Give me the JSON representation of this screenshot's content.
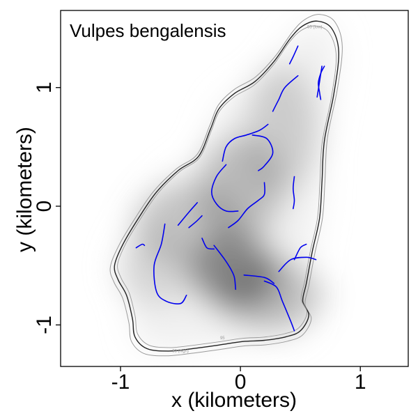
{
  "chart_data": {
    "type": "line",
    "title": "Vulpes bengalensis",
    "xlabel": "x (kilometers)",
    "ylabel": "y (kilometers)",
    "xlim": [
      -1.5,
      1.4
    ],
    "ylim": [
      -1.35,
      1.65
    ],
    "x_ticks": [
      {
        "value": -1,
        "label": "-1"
      },
      {
        "value": 0,
        "label": "0"
      },
      {
        "value": 1,
        "label": "1"
      }
    ],
    "y_ticks": [
      {
        "value": -1,
        "label": "-1"
      },
      {
        "value": 0,
        "label": "0"
      },
      {
        "value": 1,
        "label": "1"
      }
    ],
    "grid": false,
    "legend": "none",
    "colors": {
      "track": "#0000ee",
      "contour_main": "#222222",
      "contour_ci": "#9a9a9a",
      "density_dark": "#3a3a3a"
    },
    "contour_labels": [
      "95 (low)",
      "95",
      "95 (high)"
    ],
    "density": [
      {
        "x": -0.05,
        "y": -0.55,
        "rx": 0.38,
        "ry": 0.32,
        "opacity": 0.55
      },
      {
        "x": -0.45,
        "y": -0.15,
        "rx": 0.45,
        "ry": 0.35,
        "opacity": 0.25
      },
      {
        "x": 0.0,
        "y": 0.15,
        "rx": 0.35,
        "ry": 0.45,
        "opacity": 0.3
      },
      {
        "x": 0.35,
        "y": 0.65,
        "rx": 0.3,
        "ry": 0.55,
        "opacity": 0.2
      },
      {
        "x": 0.25,
        "y": -0.75,
        "rx": 0.45,
        "ry": 0.3,
        "opacity": 0.3
      },
      {
        "x": -0.7,
        "y": -0.55,
        "rx": 0.3,
        "ry": 0.3,
        "opacity": 0.15
      }
    ],
    "contour": [
      [
        -1.05,
        -0.5
      ],
      [
        -0.98,
        -0.32
      ],
      [
        -0.85,
        -0.1
      ],
      [
        -0.7,
        0.12
      ],
      [
        -0.52,
        0.3
      ],
      [
        -0.35,
        0.42
      ],
      [
        -0.25,
        0.65
      ],
      [
        -0.18,
        0.82
      ],
      [
        -0.05,
        0.95
      ],
      [
        0.12,
        1.05
      ],
      [
        0.28,
        1.22
      ],
      [
        0.42,
        1.42
      ],
      [
        0.52,
        1.52
      ],
      [
        0.64,
        1.56
      ],
      [
        0.76,
        1.5
      ],
      [
        0.82,
        1.3
      ],
      [
        0.78,
        0.95
      ],
      [
        0.7,
        0.55
      ],
      [
        0.68,
        0.2
      ],
      [
        0.66,
        -0.1
      ],
      [
        0.6,
        -0.38
      ],
      [
        0.55,
        -0.65
      ],
      [
        0.52,
        -0.8
      ],
      [
        0.57,
        -0.92
      ],
      [
        0.5,
        -1.05
      ],
      [
        0.38,
        -1.1
      ],
      [
        0.2,
        -1.13
      ],
      [
        0.02,
        -1.14
      ],
      [
        -0.18,
        -1.17
      ],
      [
        -0.4,
        -1.2
      ],
      [
        -0.6,
        -1.22
      ],
      [
        -0.78,
        -1.2
      ],
      [
        -0.88,
        -1.1
      ],
      [
        -0.9,
        -0.95
      ],
      [
        -0.95,
        -0.75
      ],
      [
        -1.02,
        -0.62
      ]
    ],
    "tracks": [
      [
        [
          0.48,
          1.35
        ],
        [
          0.44,
          1.26
        ],
        [
          0.41,
          1.2
        ]
      ],
      [
        [
          0.68,
          1.18
        ],
        [
          0.66,
          1.05
        ],
        [
          0.64,
          0.92
        ]
      ],
      [
        [
          0.7,
          1.18
        ],
        [
          0.67,
          1.12
        ],
        [
          0.65,
          1.04
        ],
        [
          0.66,
          0.96
        ],
        [
          0.67,
          0.9
        ]
      ],
      [
        [
          0.48,
          1.1
        ],
        [
          0.37,
          1.0
        ],
        [
          0.32,
          0.9
        ],
        [
          0.27,
          0.8
        ]
      ],
      [
        [
          0.23,
          0.69
        ],
        [
          0.16,
          0.64
        ],
        [
          0.05,
          0.6
        ],
        [
          -0.05,
          0.57
        ],
        [
          -0.12,
          0.5
        ],
        [
          -0.15,
          0.38
        ]
      ],
      [
        [
          0.1,
          0.6
        ],
        [
          0.22,
          0.57
        ],
        [
          0.27,
          0.45
        ],
        [
          0.2,
          0.34
        ],
        [
          0.15,
          0.3
        ]
      ],
      [
        [
          -0.12,
          0.35
        ],
        [
          -0.2,
          0.25
        ],
        [
          -0.24,
          0.12
        ],
        [
          -0.2,
          0.02
        ],
        [
          -0.12,
          -0.04
        ],
        [
          -0.02,
          -0.04
        ]
      ],
      [
        [
          0.2,
          0.2
        ],
        [
          0.2,
          0.1
        ],
        [
          0.15,
          0.05
        ],
        [
          0.06,
          -0.02
        ],
        [
          -0.02,
          -0.12
        ],
        [
          -0.1,
          -0.18
        ]
      ],
      [
        [
          -0.36,
          0.03
        ],
        [
          -0.43,
          -0.05
        ],
        [
          -0.52,
          -0.16
        ]
      ],
      [
        [
          -0.32,
          -0.08
        ],
        [
          -0.37,
          -0.13
        ],
        [
          -0.43,
          -0.18
        ]
      ],
      [
        [
          -0.63,
          -0.15
        ],
        [
          -0.66,
          -0.32
        ],
        [
          -0.72,
          -0.5
        ],
        [
          -0.7,
          -0.72
        ],
        [
          -0.62,
          -0.8
        ],
        [
          -0.5,
          -0.82
        ],
        [
          -0.45,
          -0.75
        ]
      ],
      [
        [
          -0.32,
          -0.27
        ],
        [
          -0.28,
          -0.35
        ],
        [
          -0.22,
          -0.36
        ]
      ],
      [
        [
          -0.22,
          -0.33
        ],
        [
          -0.13,
          -0.45
        ],
        [
          -0.08,
          -0.53
        ],
        [
          -0.05,
          -0.6
        ],
        [
          -0.04,
          -0.7
        ]
      ],
      [
        [
          0.03,
          -0.58
        ],
        [
          0.2,
          -0.6
        ],
        [
          0.28,
          -0.65
        ]
      ],
      [
        [
          0.2,
          -0.63
        ],
        [
          0.3,
          -0.68
        ],
        [
          0.35,
          -0.8
        ],
        [
          0.42,
          -0.97
        ],
        [
          0.45,
          -1.05
        ]
      ],
      [
        [
          0.32,
          -0.55
        ],
        [
          0.42,
          -0.45
        ],
        [
          0.55,
          -0.43
        ],
        [
          0.63,
          -0.45
        ]
      ],
      [
        [
          0.45,
          -0.45
        ],
        [
          0.5,
          -0.35
        ],
        [
          0.55,
          -0.32
        ]
      ],
      [
        [
          0.45,
          0.25
        ],
        [
          0.44,
          0.15
        ],
        [
          0.45,
          0.05
        ],
        [
          0.44,
          -0.02
        ]
      ],
      [
        [
          -0.87,
          -0.35
        ],
        [
          -0.82,
          -0.32
        ],
        [
          -0.8,
          -0.33
        ]
      ]
    ]
  }
}
